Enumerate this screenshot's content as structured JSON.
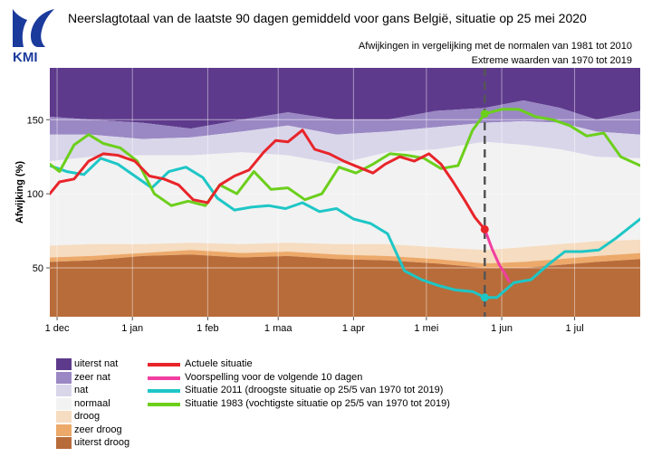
{
  "header": {
    "logo_text": "KMI",
    "title": "Neerslagtotaal van de laatste 90 dagen gemiddeld voor gans België, situatie op 25 mei 2020",
    "subtitle1": "Afwijkingen in vergelijking met de normalen van 1981 tot 2010",
    "subtitle2": "Extreme waarden van 1970 tot 2019"
  },
  "colors": {
    "uiterst_nat": "#5e3a8c",
    "zeer_nat": "#9a88c4",
    "nat": "#d9d6ea",
    "normaal": "#f2f2f2",
    "droog": "#f6dcc0",
    "zeer_droog": "#eca96a",
    "uiterst_droog": "#b86c3a",
    "actuele": "#e8252a",
    "voorspelling": "#f13ea0",
    "s2011": "#1ec6c6",
    "s1983": "#6ccf1c",
    "today_line": "#555555"
  },
  "chart_data": {
    "type": "area",
    "title": "Neerslagtotaal van de laatste 90 dagen gemiddeld voor gans België, situatie op 25 mei 2020",
    "ylabel": "Afwijking (%)",
    "xlabel": "",
    "ylim": [
      17,
      185
    ],
    "xlim": [
      "2019-11-28",
      "2020-07-28"
    ],
    "x_ticks": [
      {
        "date": "2019-12-01",
        "label": "1 dec"
      },
      {
        "date": "2020-01-01",
        "label": "1 jan"
      },
      {
        "date": "2020-02-01",
        "label": "1 feb"
      },
      {
        "date": "2020-03-01",
        "label": "1 maa"
      },
      {
        "date": "2020-04-01",
        "label": "1 apr"
      },
      {
        "date": "2020-05-01",
        "label": "1 mei"
      },
      {
        "date": "2020-06-01",
        "label": "1 jun"
      },
      {
        "date": "2020-07-01",
        "label": "1 jul"
      }
    ],
    "y_ticks": [
      50,
      100,
      150
    ],
    "today": "2020-05-25",
    "bands": [
      {
        "name": "uiterst nat",
        "color": "#5e3a8c",
        "x": [
          "2019-11-28",
          "2019-12-15",
          "2020-01-05",
          "2020-01-25",
          "2020-02-15",
          "2020-03-05",
          "2020-03-25",
          "2020-04-15",
          "2020-05-05",
          "2020-05-25",
          "2020-06-10",
          "2020-06-25",
          "2020-07-10",
          "2020-07-28"
        ],
        "lower": [
          152,
          150,
          148,
          144,
          150,
          155,
          150,
          150,
          156,
          158,
          163,
          158,
          150,
          156
        ],
        "upper": [
          185,
          185,
          185,
          185,
          185,
          185,
          185,
          185,
          185,
          185,
          185,
          185,
          185,
          185
        ]
      },
      {
        "name": "zeer nat",
        "color": "#9a88c4",
        "x": [
          "2019-11-28",
          "2019-12-15",
          "2020-01-05",
          "2020-01-25",
          "2020-02-15",
          "2020-03-05",
          "2020-03-25",
          "2020-04-15",
          "2020-05-05",
          "2020-05-25",
          "2020-06-10",
          "2020-06-25",
          "2020-07-10",
          "2020-07-28"
        ],
        "lower": [
          140,
          140,
          137,
          138,
          142,
          146,
          140,
          142,
          145,
          148,
          149,
          148,
          142,
          140
        ],
        "upper": [
          152,
          150,
          148,
          144,
          150,
          155,
          150,
          150,
          156,
          158,
          163,
          158,
          150,
          156
        ]
      },
      {
        "name": "nat",
        "color": "#d9d6ea",
        "x": [
          "2019-11-28",
          "2019-12-15",
          "2020-01-05",
          "2020-01-25",
          "2020-02-15",
          "2020-03-05",
          "2020-03-25",
          "2020-04-15",
          "2020-05-05",
          "2020-05-25",
          "2020-06-10",
          "2020-06-25",
          "2020-07-10",
          "2020-07-28"
        ],
        "lower": [
          122,
          125,
          126,
          126,
          128,
          126,
          120,
          128,
          130,
          135,
          133,
          130,
          125,
          124
        ],
        "upper": [
          140,
          140,
          137,
          138,
          142,
          146,
          140,
          142,
          145,
          148,
          149,
          148,
          142,
          140
        ]
      },
      {
        "name": "normaal",
        "color": "#f2f2f2",
        "x": [
          "2019-11-28",
          "2019-12-15",
          "2020-01-05",
          "2020-01-25",
          "2020-02-15",
          "2020-03-05",
          "2020-03-25",
          "2020-04-15",
          "2020-05-05",
          "2020-05-25",
          "2020-06-10",
          "2020-06-25",
          "2020-07-10",
          "2020-07-28"
        ],
        "lower": [
          65,
          66,
          66,
          67,
          66,
          67,
          66,
          66,
          64,
          62,
          64,
          66,
          68,
          69
        ],
        "upper": [
          122,
          125,
          126,
          126,
          128,
          126,
          120,
          128,
          130,
          135,
          133,
          130,
          125,
          124
        ]
      },
      {
        "name": "droog",
        "color": "#f6dcc0",
        "x": [
          "2019-11-28",
          "2019-12-15",
          "2020-01-05",
          "2020-01-25",
          "2020-02-15",
          "2020-03-05",
          "2020-03-25",
          "2020-04-15",
          "2020-05-05",
          "2020-05-25",
          "2020-06-10",
          "2020-06-25",
          "2020-07-10",
          "2020-07-28"
        ],
        "lower": [
          57,
          58,
          60,
          62,
          60,
          61,
          59,
          58,
          56,
          53,
          54,
          56,
          58,
          60
        ],
        "upper": [
          65,
          66,
          66,
          67,
          66,
          67,
          66,
          66,
          64,
          62,
          64,
          66,
          68,
          69
        ]
      },
      {
        "name": "zeer droog",
        "color": "#eca96a",
        "x": [
          "2019-11-28",
          "2019-12-15",
          "2020-01-05",
          "2020-01-25",
          "2020-02-15",
          "2020-03-05",
          "2020-03-25",
          "2020-04-15",
          "2020-05-05",
          "2020-05-25",
          "2020-06-10",
          "2020-06-25",
          "2020-07-10",
          "2020-07-28"
        ],
        "lower": [
          54,
          55,
          58,
          59,
          57,
          58,
          56,
          55,
          53,
          50,
          50,
          52,
          54,
          56
        ],
        "upper": [
          57,
          58,
          60,
          62,
          60,
          61,
          59,
          58,
          56,
          53,
          54,
          56,
          58,
          60
        ]
      },
      {
        "name": "uiterst droog",
        "color": "#b86c3a",
        "x": [
          "2019-11-28",
          "2019-12-15",
          "2020-01-05",
          "2020-01-25",
          "2020-02-15",
          "2020-03-05",
          "2020-03-25",
          "2020-04-15",
          "2020-05-05",
          "2020-05-25",
          "2020-06-10",
          "2020-06-25",
          "2020-07-10",
          "2020-07-28"
        ],
        "lower": [
          17,
          17,
          17,
          17,
          17,
          17,
          17,
          17,
          17,
          17,
          17,
          17,
          17,
          17
        ],
        "upper": [
          54,
          55,
          58,
          59,
          57,
          58,
          56,
          55,
          53,
          50,
          50,
          52,
          54,
          56
        ]
      }
    ],
    "series": [
      {
        "name": "Actuele situatie",
        "color": "#e8252a",
        "x": [
          "2019-11-28",
          "2019-12-02",
          "2019-12-08",
          "2019-12-14",
          "2019-12-20",
          "2019-12-26",
          "2020-01-02",
          "2020-01-08",
          "2020-01-14",
          "2020-01-20",
          "2020-01-26",
          "2020-02-01",
          "2020-02-06",
          "2020-02-12",
          "2020-02-18",
          "2020-02-24",
          "2020-02-29",
          "2020-03-05",
          "2020-03-11",
          "2020-03-16",
          "2020-03-22",
          "2020-03-28",
          "2020-04-03",
          "2020-04-09",
          "2020-04-14",
          "2020-04-20",
          "2020-04-26",
          "2020-05-02",
          "2020-05-07",
          "2020-05-12",
          "2020-05-17",
          "2020-05-21",
          "2020-05-25"
        ],
        "y": [
          100,
          108,
          110,
          122,
          127,
          126,
          122,
          112,
          110,
          106,
          96,
          94,
          106,
          112,
          116,
          128,
          136,
          135,
          143,
          130,
          127,
          122,
          118,
          114,
          120,
          125,
          122,
          127,
          120,
          108,
          95,
          84,
          76
        ]
      },
      {
        "name": "Voorspelling voor de volgende 10 dagen",
        "color": "#f13ea0",
        "x": [
          "2020-05-25",
          "2020-05-28",
          "2020-05-31",
          "2020-06-02",
          "2020-06-04"
        ],
        "y": [
          76,
          63,
          52,
          47,
          41
        ]
      },
      {
        "name": "Situatie 2011 (droogste situatie op 25/5 van 1970 tot 2019)",
        "color": "#1ec6c6",
        "x": [
          "2019-11-28",
          "2019-12-05",
          "2019-12-12",
          "2019-12-19",
          "2019-12-26",
          "2020-01-02",
          "2020-01-09",
          "2020-01-16",
          "2020-01-23",
          "2020-01-30",
          "2020-02-05",
          "2020-02-12",
          "2020-02-19",
          "2020-02-26",
          "2020-03-04",
          "2020-03-11",
          "2020-03-18",
          "2020-03-25",
          "2020-04-01",
          "2020-04-08",
          "2020-04-15",
          "2020-04-22",
          "2020-04-29",
          "2020-05-06",
          "2020-05-13",
          "2020-05-20",
          "2020-05-25",
          "2020-05-30",
          "2020-06-06",
          "2020-06-13",
          "2020-06-20",
          "2020-06-27",
          "2020-07-04",
          "2020-07-11",
          "2020-07-18",
          "2020-07-28"
        ],
        "y": [
          119,
          115,
          113,
          124,
          120,
          112,
          104,
          115,
          118,
          111,
          97,
          89,
          91,
          92,
          90,
          94,
          88,
          90,
          83,
          80,
          73,
          48,
          42,
          38,
          35,
          34,
          30,
          30,
          40,
          42,
          52,
          61,
          61,
          62,
          70,
          83
        ]
      },
      {
        "name": "Situatie 1983 (vochtigste situatie op 25/5 van 1970 tot 2019)",
        "color": "#6ccf1c",
        "x": [
          "2019-11-28",
          "2019-12-02",
          "2019-12-08",
          "2019-12-14",
          "2019-12-20",
          "2019-12-27",
          "2020-01-03",
          "2020-01-10",
          "2020-01-17",
          "2020-01-24",
          "2020-01-31",
          "2020-02-06",
          "2020-02-13",
          "2020-02-20",
          "2020-02-27",
          "2020-03-05",
          "2020-03-12",
          "2020-03-19",
          "2020-03-26",
          "2020-04-02",
          "2020-04-09",
          "2020-04-16",
          "2020-04-23",
          "2020-04-30",
          "2020-05-07",
          "2020-05-14",
          "2020-05-20",
          "2020-05-25",
          "2020-06-01",
          "2020-06-08",
          "2020-06-15",
          "2020-06-22",
          "2020-06-29",
          "2020-07-06",
          "2020-07-13",
          "2020-07-20",
          "2020-07-28"
        ],
        "y": [
          120,
          115,
          133,
          140,
          134,
          131,
          122,
          100,
          92,
          95,
          92,
          106,
          100,
          115,
          103,
          104,
          96,
          100,
          118,
          114,
          120,
          127,
          126,
          124,
          117,
          119,
          143,
          154,
          157,
          157,
          152,
          150,
          146,
          139,
          141,
          125,
          119
        ]
      }
    ],
    "markers": [
      {
        "series": "Actuele situatie",
        "x": "2020-05-25",
        "y": 76,
        "color": "#e8252a"
      },
      {
        "series": "Situatie 2011 (droogste situatie op 25/5 van 1970 tot 2019)",
        "x": "2020-05-25",
        "y": 30,
        "color": "#1ec6c6"
      },
      {
        "series": "Situatie 1983 (vochtigste situatie op 25/5 van 1970 tot 2019)",
        "x": "2020-05-25",
        "y": 154,
        "color": "#6ccf1c"
      }
    ],
    "grid": true,
    "legend_position": "bottom-left"
  },
  "legend": {
    "bands": [
      {
        "label": "uiterst nat",
        "color": "#5e3a8c"
      },
      {
        "label": "zeer nat",
        "color": "#9a88c4"
      },
      {
        "label": "nat",
        "color": "#d9d6ea"
      },
      {
        "label": "normaal",
        "color": "#f2f2f2"
      },
      {
        "label": "droog",
        "color": "#f6dcc0"
      },
      {
        "label": "zeer droog",
        "color": "#eca96a"
      },
      {
        "label": "uiterst droog",
        "color": "#b86c3a"
      }
    ],
    "lines": [
      {
        "label": "Actuele situatie",
        "color": "#e8252a"
      },
      {
        "label": "Voorspelling voor de volgende 10 dagen",
        "color": "#f13ea0"
      },
      {
        "label": "Situatie 2011 (droogste situatie op 25/5 van 1970 tot 2019)",
        "color": "#1ec6c6"
      },
      {
        "label": "Situatie 1983 (vochtigste situatie op 25/5 van 1970 tot 2019)",
        "color": "#6ccf1c"
      }
    ]
  }
}
